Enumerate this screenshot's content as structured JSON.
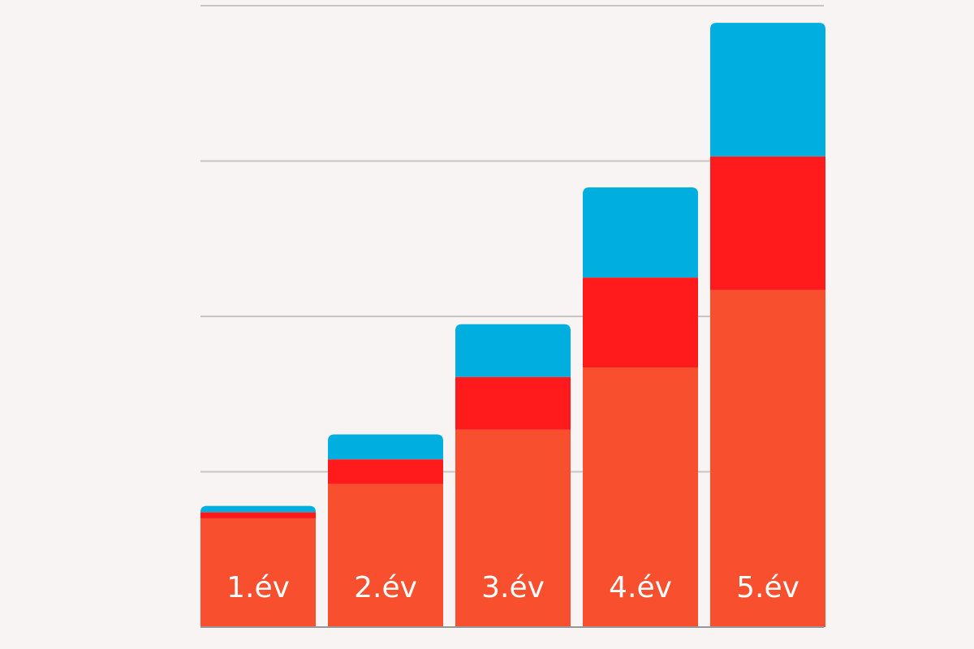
{
  "chart_data": {
    "type": "bar",
    "stacked": true,
    "title": "",
    "xlabel": "",
    "ylabel": "",
    "categories": [
      "1.év",
      "2.év",
      "3.év",
      "4.év",
      "5.év"
    ],
    "series": [
      {
        "color": "#f8502e",
        "values": [
          70,
          92,
          127,
          167,
          217
        ]
      },
      {
        "color": "#ff1a1c",
        "values": [
          4,
          16,
          34,
          58,
          86
        ]
      },
      {
        "color": "#00aedf",
        "values": [
          4,
          16,
          34,
          58,
          86
        ]
      }
    ],
    "ylim": [
      0,
      400
    ],
    "gridlines": [
      100,
      200,
      300,
      400
    ],
    "grid": true,
    "legend": "none",
    "colors": {
      "background": "#f8f4f3",
      "gridline": "#c9c4c4",
      "baseline": "#9a9696",
      "label": "#ffffff"
    }
  }
}
